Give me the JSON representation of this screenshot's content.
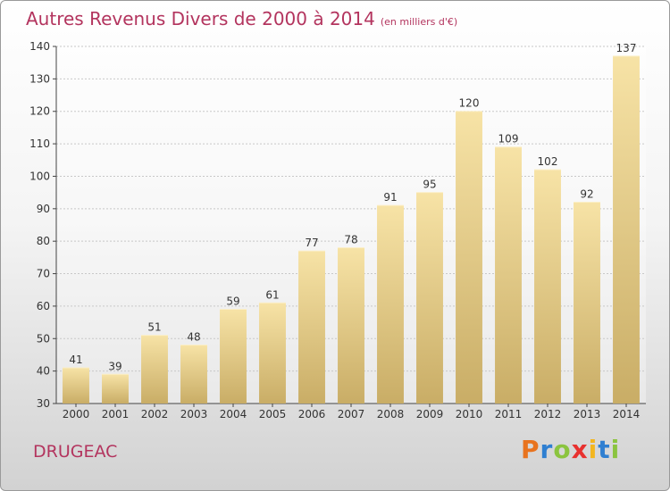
{
  "header": {
    "title": "Autres Revenus Divers de 2000 à 2014",
    "unit": "(en milliers d'€)"
  },
  "footer": {
    "commune": "DRUGEAC",
    "logo": "Proxiti",
    "logo_colors": [
      "#e8731e",
      "#2f7fd1",
      "#8bc43f",
      "#e8312f",
      "#f3b61f",
      "#2f7fd1",
      "#8bc43f"
    ]
  },
  "colors": {
    "title": "#b3345e",
    "bar_light": "#f7e3a6",
    "bar_dark": "#c9ad66",
    "grid": "#c8c8c8",
    "axis": "#444444"
  },
  "chart_data": {
    "type": "bar",
    "categories": [
      "2000",
      "2001",
      "2002",
      "2003",
      "2004",
      "2005",
      "2006",
      "2007",
      "2008",
      "2009",
      "2010",
      "2011",
      "2012",
      "2013",
      "2014"
    ],
    "values": [
      41,
      39,
      51,
      48,
      59,
      61,
      77,
      78,
      91,
      95,
      120,
      109,
      102,
      92,
      137
    ],
    "title": "Autres Revenus Divers de 2000 à 2014",
    "subtitle": "(en milliers d'€)",
    "xlabel": "",
    "ylabel": "",
    "ylim": [
      30,
      140
    ],
    "yticks": [
      30,
      40,
      50,
      60,
      70,
      80,
      90,
      100,
      110,
      120,
      130,
      140
    ],
    "grid": true
  }
}
